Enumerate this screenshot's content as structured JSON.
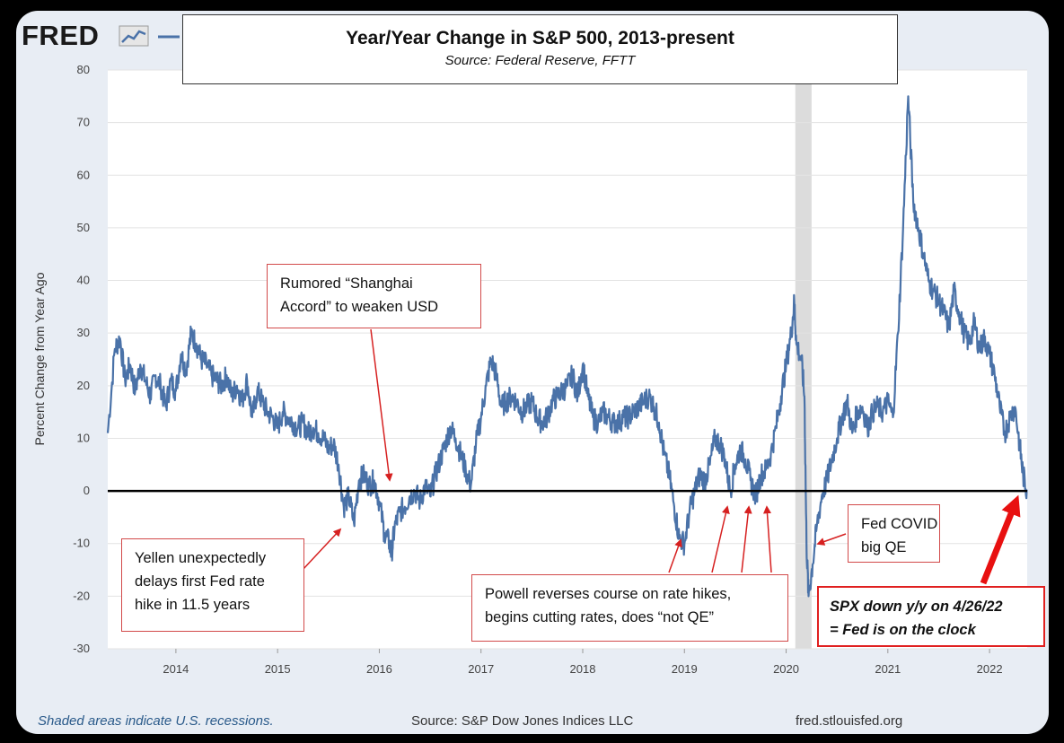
{
  "branding": {
    "logo_text": "FRED"
  },
  "chart_data": {
    "type": "line",
    "title": "Year/Year Change in S&P 500, 2013-present",
    "subtitle": "Source: Federal Reserve, FFTT",
    "ylabel": "Percent Change from Year Ago",
    "xlabel": "",
    "ylim": [
      -30,
      80
    ],
    "xlim": [
      2013.33,
      2022.37
    ],
    "y_ticks": [
      "80",
      "70",
      "60",
      "50",
      "40",
      "30",
      "20",
      "10",
      "0",
      "-10",
      "-20",
      "-30"
    ],
    "x_ticks": [
      "2014",
      "2015",
      "2016",
      "2017",
      "2018",
      "2019",
      "2020",
      "2021",
      "2022"
    ],
    "grid": "horizontal",
    "zero_line": true,
    "recession_shading": [
      [
        2020.09,
        2020.25
      ]
    ],
    "colors": {
      "series": "#4a72a8",
      "zero_line": "#000000",
      "recession": "#dcdcdc",
      "annotation": "#d62020"
    },
    "series": [
      {
        "points": [
          [
            2013.33,
            11
          ],
          [
            2013.4,
            27
          ],
          [
            2013.45,
            29
          ],
          [
            2013.5,
            21
          ],
          [
            2013.55,
            24
          ],
          [
            2013.6,
            19
          ],
          [
            2013.65,
            24
          ],
          [
            2013.7,
            21
          ],
          [
            2013.75,
            18
          ],
          [
            2013.8,
            22
          ],
          [
            2013.85,
            20
          ],
          [
            2013.9,
            16
          ],
          [
            2013.95,
            21
          ],
          [
            2014.0,
            19
          ],
          [
            2014.05,
            26
          ],
          [
            2014.1,
            23
          ],
          [
            2014.15,
            30
          ],
          [
            2014.2,
            28
          ],
          [
            2014.25,
            25
          ],
          [
            2014.3,
            24
          ],
          [
            2014.35,
            22
          ],
          [
            2014.4,
            21
          ],
          [
            2014.45,
            20
          ],
          [
            2014.5,
            22
          ],
          [
            2014.55,
            18
          ],
          [
            2014.6,
            20
          ],
          [
            2014.65,
            17
          ],
          [
            2014.7,
            21
          ],
          [
            2014.75,
            14
          ],
          [
            2014.8,
            19
          ],
          [
            2014.85,
            17
          ],
          [
            2014.9,
            15
          ],
          [
            2014.95,
            14
          ],
          [
            2015.0,
            12
          ],
          [
            2015.05,
            15
          ],
          [
            2015.1,
            14
          ],
          [
            2015.15,
            13
          ],
          [
            2015.2,
            12
          ],
          [
            2015.25,
            13
          ],
          [
            2015.3,
            11
          ],
          [
            2015.35,
            12
          ],
          [
            2015.4,
            11
          ],
          [
            2015.45,
            10
          ],
          [
            2015.5,
            8
          ],
          [
            2015.55,
            9
          ],
          [
            2015.6,
            5
          ],
          [
            2015.65,
            -3
          ],
          [
            2015.7,
            -1
          ],
          [
            2015.75,
            -6
          ],
          [
            2015.8,
            2
          ],
          [
            2015.85,
            3
          ],
          [
            2015.9,
            1
          ],
          [
            2015.95,
            2
          ],
          [
            2016.0,
            -2
          ],
          [
            2016.05,
            -8
          ],
          [
            2016.1,
            -10
          ],
          [
            2016.12,
            -12
          ],
          [
            2016.15,
            -7
          ],
          [
            2016.2,
            -4
          ],
          [
            2016.25,
            -3
          ],
          [
            2016.3,
            -1
          ],
          [
            2016.35,
            0
          ],
          [
            2016.4,
            -2
          ],
          [
            2016.45,
            1
          ],
          [
            2016.5,
            -1
          ],
          [
            2016.55,
            3
          ],
          [
            2016.6,
            6
          ],
          [
            2016.65,
            9
          ],
          [
            2016.7,
            12
          ],
          [
            2016.75,
            10
          ],
          [
            2016.8,
            7
          ],
          [
            2016.85,
            4
          ],
          [
            2016.9,
            1
          ],
          [
            2016.95,
            9
          ],
          [
            2017.0,
            14
          ],
          [
            2017.05,
            20
          ],
          [
            2017.1,
            25
          ],
          [
            2017.15,
            22
          ],
          [
            2017.2,
            16
          ],
          [
            2017.25,
            17
          ],
          [
            2017.3,
            18
          ],
          [
            2017.35,
            17
          ],
          [
            2017.4,
            15
          ],
          [
            2017.45,
            16
          ],
          [
            2017.5,
            17
          ],
          [
            2017.55,
            14
          ],
          [
            2017.6,
            13
          ],
          [
            2017.65,
            14
          ],
          [
            2017.7,
            17
          ],
          [
            2017.75,
            18
          ],
          [
            2017.8,
            19
          ],
          [
            2017.85,
            20
          ],
          [
            2017.9,
            22
          ],
          [
            2017.95,
            18
          ],
          [
            2018.0,
            24
          ],
          [
            2018.05,
            18
          ],
          [
            2018.1,
            14
          ],
          [
            2018.15,
            13
          ],
          [
            2018.2,
            15
          ],
          [
            2018.25,
            14
          ],
          [
            2018.3,
            13
          ],
          [
            2018.35,
            13
          ],
          [
            2018.4,
            14
          ],
          [
            2018.45,
            14
          ],
          [
            2018.5,
            15
          ],
          [
            2018.55,
            16
          ],
          [
            2018.6,
            17
          ],
          [
            2018.65,
            18
          ],
          [
            2018.7,
            16
          ],
          [
            2018.75,
            13
          ],
          [
            2018.8,
            7
          ],
          [
            2018.85,
            3
          ],
          [
            2018.9,
            -3
          ],
          [
            2018.95,
            -9
          ],
          [
            2019.0,
            -10
          ],
          [
            2019.05,
            -4
          ],
          [
            2019.1,
            0
          ],
          [
            2019.15,
            3
          ],
          [
            2019.2,
            2
          ],
          [
            2019.25,
            5
          ],
          [
            2019.3,
            10
          ],
          [
            2019.35,
            9
          ],
          [
            2019.4,
            6
          ],
          [
            2019.45,
            0
          ],
          [
            2019.5,
            5
          ],
          [
            2019.55,
            8
          ],
          [
            2019.6,
            6
          ],
          [
            2019.65,
            2
          ],
          [
            2019.7,
            -1
          ],
          [
            2019.75,
            3
          ],
          [
            2019.8,
            4
          ],
          [
            2019.85,
            7
          ],
          [
            2019.9,
            12
          ],
          [
            2019.95,
            18
          ],
          [
            2020.0,
            24
          ],
          [
            2020.05,
            30
          ],
          [
            2020.08,
            36
          ],
          [
            2020.1,
            28
          ],
          [
            2020.15,
            25
          ],
          [
            2020.18,
            18
          ],
          [
            2020.2,
            -10
          ],
          [
            2020.22,
            -20
          ],
          [
            2020.26,
            -14
          ],
          [
            2020.3,
            -7
          ],
          [
            2020.35,
            -1
          ],
          [
            2020.4,
            2
          ],
          [
            2020.45,
            6
          ],
          [
            2020.5,
            10
          ],
          [
            2020.55,
            14
          ],
          [
            2020.6,
            17
          ],
          [
            2020.65,
            11
          ],
          [
            2020.7,
            15
          ],
          [
            2020.75,
            16
          ],
          [
            2020.8,
            12
          ],
          [
            2020.85,
            15
          ],
          [
            2020.9,
            16
          ],
          [
            2020.95,
            15
          ],
          [
            2021.0,
            17
          ],
          [
            2021.05,
            14
          ],
          [
            2021.1,
            30
          ],
          [
            2021.15,
            50
          ],
          [
            2021.2,
            75
          ],
          [
            2021.25,
            55
          ],
          [
            2021.3,
            50
          ],
          [
            2021.35,
            45
          ],
          [
            2021.4,
            40
          ],
          [
            2021.45,
            38
          ],
          [
            2021.5,
            36
          ],
          [
            2021.55,
            34
          ],
          [
            2021.6,
            31
          ],
          [
            2021.65,
            38
          ],
          [
            2021.7,
            34
          ],
          [
            2021.75,
            30
          ],
          [
            2021.8,
            28
          ],
          [
            2021.85,
            32
          ],
          [
            2021.9,
            27
          ],
          [
            2021.95,
            29
          ],
          [
            2022.0,
            26
          ],
          [
            2022.05,
            22
          ],
          [
            2022.1,
            16
          ],
          [
            2022.15,
            11
          ],
          [
            2022.2,
            14
          ],
          [
            2022.25,
            16
          ],
          [
            2022.3,
            8
          ],
          [
            2022.33,
            3
          ],
          [
            2022.37,
            0
          ]
        ]
      }
    ],
    "annotations": [
      {
        "lines": [
          "Yellen unexpectedly",
          "delays first Fed rate",
          "hike in 11.5 years"
        ]
      },
      {
        "lines": [
          "Rumored “Shanghai",
          "Accord” to weaken USD"
        ]
      },
      {
        "lines": [
          "Powell reverses course on rate hikes,",
          "begins cutting rates, does “not QE”"
        ]
      },
      {
        "lines": [
          "Fed COVID",
          "big QE"
        ]
      },
      {
        "lines": [
          "SPX down y/y on 4/26/22",
          "= Fed is on the clock"
        ]
      }
    ]
  },
  "footer": {
    "recession_note": "Shaded areas indicate U.S. recessions.",
    "source": "Source: S&P Dow Jones Indices LLC",
    "website": "fred.stlouisfed.org"
  }
}
